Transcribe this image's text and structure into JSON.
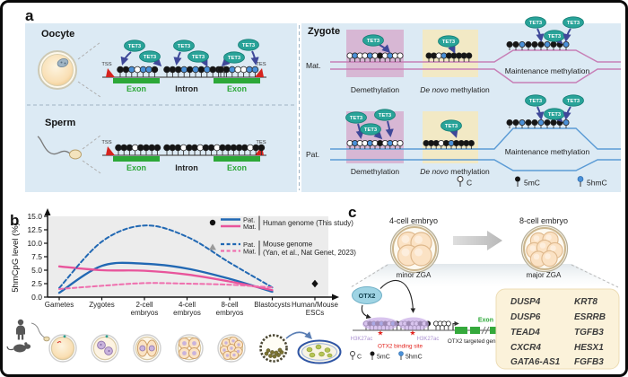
{
  "colors": {
    "panel_bg": "#dceaf4",
    "teal": "#29a399",
    "navy": "#3f4899",
    "exon_green": "#2ca838",
    "red": "#d6231e",
    "mc_black": "#151515",
    "hmc_blue": "#4a90d8",
    "c_white": "#ffffff",
    "mat_pink": "#c77fb6",
    "pat_blue": "#5b9bd5",
    "demeth_box": "#d7b7d4",
    "denovo_box": "#f2e9c5",
    "plot_bg": "#ececec",
    "gene_box": "#fbf2da",
    "purple_blob": "#cbb0e8",
    "purple_text": "#a98fd0",
    "otx2_fill": "#9fd4e4"
  },
  "panel_a": {
    "label": "a",
    "oocyte_title": "Oocyte",
    "sperm_title": "Sperm",
    "zygote_title": "Zygote",
    "tss": "TSS",
    "tes": "TES",
    "exon": "Exon",
    "intron": "Intron",
    "tet3": "TET3",
    "mat": "Mat.",
    "pat": "Pat.",
    "demethylation": "Demethylation",
    "de_novo": "De novo",
    "methylation_rest": " methylation",
    "maintenance": "Maintenance methylation",
    "patterns": {
      "oocyte_exon1": "kkbwbbk",
      "oocyte_intron": "kkkbkbkbkkw",
      "oocyte_exon2": "kkbwwbb",
      "sperm_exon1": "kkkwkkkk",
      "sperm_intron": "kkkwkkwkkw",
      "sperm_exon2": "kkkkkwkk",
      "mat_demethylation": "wbwwbwkwbww",
      "mat_de_novo": "kkwbkkkkk",
      "mat_maintenance": "kkbkkkbkkb",
      "pat_demethylation": "wbwwbwkwbww",
      "pat_de_novo": "kkkwkbkkkk",
      "pat_maintenance": "kkbkkbkkkb"
    }
  },
  "methyl_legend": {
    "c": "C",
    "mc": "5mC",
    "hmc": "5hmC"
  },
  "panel_b": {
    "label": "b",
    "legend": {
      "pat": "Pat.",
      "mat": "Mat.",
      "human": "Human genome (This study)",
      "mouse1": "Mouse genome",
      "mouse2": "(Yan, et al., Nat Genet, 2023)"
    }
  },
  "chart_data": {
    "type": "line",
    "title": "",
    "xlabel": "",
    "ylabel": "5hmCpG level (%)",
    "ylim": [
      0,
      15
    ],
    "yticks": [
      0,
      2.5,
      5,
      7.5,
      10,
      12.5,
      15
    ],
    "grid": false,
    "legend_position": "top-right",
    "categories": [
      "Gametes",
      "Zygotes",
      "2-cell\nembryos",
      "4-cell\nembryos",
      "8-cell\nembryos",
      "Blastocysts",
      "Human/Mouse\nESCs"
    ],
    "series": [
      {
        "name": "Pat. Human genome (This study)",
        "color": "#2168b3",
        "dash": "solid",
        "values": [
          0.8,
          5.8,
          6.2,
          5.3,
          3.4,
          1.0,
          null
        ]
      },
      {
        "name": "Mat. Human genome (This study)",
        "color": "#e8549b",
        "dash": "solid",
        "values": [
          5.7,
          5.0,
          4.9,
          4.2,
          2.9,
          1.3,
          null
        ]
      },
      {
        "name": "Pat. Mouse genome (Yan, et al., Nat Genet, 2023)",
        "color": "#2168b3",
        "dash": "dashed",
        "values": [
          1.7,
          10.3,
          13.3,
          11.2,
          6.4,
          1.8,
          null
        ]
      },
      {
        "name": "Mat. Mouse genome (Yan, et al., Nat Genet, 2023)",
        "color": "#ef6fae",
        "dash": "dashed",
        "values": [
          1.5,
          2.1,
          2.6,
          2.5,
          2.3,
          1.8,
          null
        ]
      }
    ],
    "extra_point": {
      "category": "Human/Mouse ESCs",
      "value": 2.5,
      "error": 0.5,
      "marker": "diamond",
      "color": "#111111"
    }
  },
  "panel_c": {
    "label": "c",
    "embryo4": "4-cell embryo",
    "embryo8": "8-cell embryo",
    "minor": "minor ZGA",
    "major": "major ZGA",
    "otx2": "OTX2",
    "h3k27ac": "H3K27ac",
    "binding": "OTX2 binding site",
    "targeted": "OTX2 targeted genes",
    "exon": "Exon",
    "patterns": {
      "site1": "wkbkbkwbk",
      "site2": "wwkwwkwk",
      "open": "wwww"
    },
    "genes_col1": [
      "DUSP4",
      "DUSP6",
      "TEAD4",
      "CXCR4",
      "GATA6-AS1"
    ],
    "genes_col2": [
      "KRT8",
      "ESRRB",
      "TGFB3",
      "HESX1",
      "FGFB3"
    ]
  }
}
